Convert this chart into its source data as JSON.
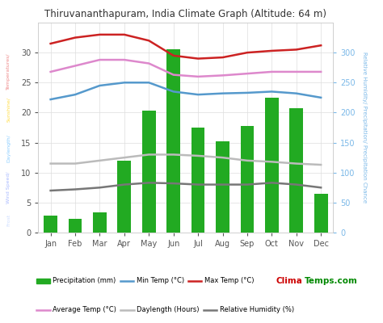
{
  "title": "Thiruvananthapuram, India Climate Graph (Altitude: 64 m)",
  "months": [
    "Jan",
    "Feb",
    "Mar",
    "Apr",
    "May",
    "Jun",
    "Jul",
    "Aug",
    "Sep",
    "Oct",
    "Nov",
    "Dec"
  ],
  "precipitation": [
    2.8,
    2.3,
    3.3,
    12.0,
    20.3,
    30.5,
    17.5,
    15.2,
    17.8,
    22.5,
    20.7,
    6.5
  ],
  "min_temp": [
    22.2,
    23.0,
    24.5,
    25.0,
    25.0,
    23.5,
    23.0,
    23.2,
    23.3,
    23.5,
    23.2,
    22.5
  ],
  "max_temp": [
    31.5,
    32.5,
    33.0,
    33.0,
    32.0,
    29.5,
    29.0,
    29.2,
    30.0,
    30.3,
    30.5,
    31.2
  ],
  "avg_temp": [
    26.8,
    27.8,
    28.8,
    28.8,
    28.2,
    26.3,
    26.0,
    26.2,
    26.5,
    26.8,
    26.8,
    26.8
  ],
  "daylength": [
    11.5,
    11.5,
    12.0,
    12.5,
    13.0,
    13.0,
    12.8,
    12.5,
    12.0,
    11.8,
    11.5,
    11.3
  ],
  "rel_humidity": [
    7.0,
    7.2,
    7.5,
    8.0,
    8.3,
    8.2,
    8.0,
    8.0,
    8.0,
    8.3,
    8.0,
    7.5
  ],
  "bar_color": "#22aa22",
  "min_temp_color": "#5599cc",
  "max_temp_color": "#cc2222",
  "avg_temp_color": "#dd88cc",
  "daylength_color": "#bbbbbb",
  "rel_humidity_color": "#777777",
  "ylim_left": [
    0,
    35
  ],
  "ylim_right": [
    0,
    350
  ],
  "background_color": "#ffffff",
  "grid_color": "#dddddd",
  "title_fontsize": 8.5,
  "left_label_parts": [
    [
      "Temperatures/",
      "#ee8888"
    ],
    [
      " Sunshine/",
      "#ffdd44"
    ],
    [
      " Daylength/",
      "#88ccff"
    ],
    [
      " Wind Speed/",
      "#aabbff"
    ],
    [
      " Frost",
      "#ccddff"
    ]
  ],
  "right_label": "Relative Humidity/ Precipitation/ Precipitation Chance",
  "right_label_color": "#7ab8e8",
  "watermark_clima_color": "#cc0000",
  "watermark_temps_color": "#008800"
}
